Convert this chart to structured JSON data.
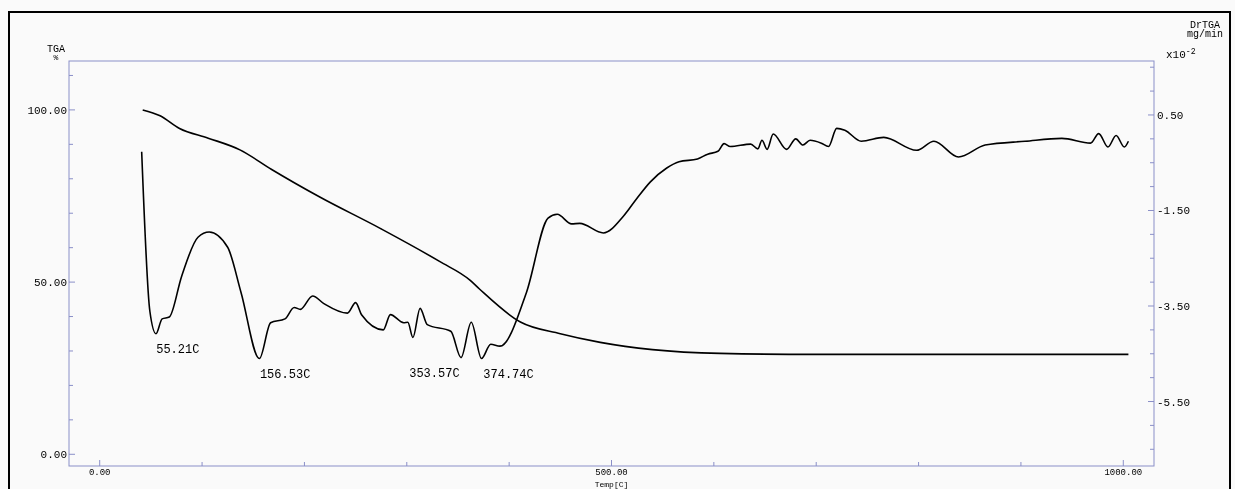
{
  "chart_data": {
    "type": "line",
    "xlabel": "Temp[C]",
    "ylabel": "TGA %",
    "y2label": "DrTGA mg/min",
    "xlim": [
      -30,
      1030
    ],
    "ylim": [
      -3.4,
      114.2
    ],
    "y2lim": [
      -6.85,
      1.63
    ],
    "xticks": [
      {
        "value": 0,
        "label": "0.00"
      },
      {
        "value": 100,
        "label": null
      },
      {
        "value": 200,
        "label": null
      },
      {
        "value": 300,
        "label": null
      },
      {
        "value": 400,
        "label": null
      },
      {
        "value": 500,
        "label": "500.00"
      },
      {
        "value": 600,
        "label": null
      },
      {
        "value": 700,
        "label": null
      },
      {
        "value": 800,
        "label": null
      },
      {
        "value": 900,
        "label": null
      },
      {
        "value": 1000,
        "label": "1000.00"
      }
    ],
    "yticks": [
      {
        "value": 0,
        "label": "0.00"
      },
      {
        "value": 10,
        "label": null
      },
      {
        "value": 20,
        "label": null
      },
      {
        "value": 30,
        "label": null
      },
      {
        "value": 40,
        "label": null
      },
      {
        "value": 50,
        "label": "50.00"
      },
      {
        "value": 60,
        "label": null
      },
      {
        "value": 70,
        "label": null
      },
      {
        "value": 80,
        "label": null
      },
      {
        "value": 90,
        "label": null
      },
      {
        "value": 100,
        "label": "100.00"
      },
      {
        "value": 110,
        "label": null
      }
    ],
    "y2ticks": [
      {
        "value": -6.5,
        "label": null
      },
      {
        "value": -6,
        "label": null
      },
      {
        "value": -5.5,
        "label": "-5.50"
      },
      {
        "value": -5,
        "label": null
      },
      {
        "value": -4.5,
        "label": null
      },
      {
        "value": -4,
        "label": null
      },
      {
        "value": -3.5,
        "label": "-3.50"
      },
      {
        "value": -3,
        "label": null
      },
      {
        "value": -2.5,
        "label": null
      },
      {
        "value": -2,
        "label": null
      },
      {
        "value": -1.5,
        "label": "-1.50"
      },
      {
        "value": -1,
        "label": null
      },
      {
        "value": -0.5,
        "label": null
      },
      {
        "value": 0,
        "label": null
      },
      {
        "value": 0.5,
        "label": "0.50"
      },
      {
        "value": 1,
        "label": null
      },
      {
        "value": 1.5,
        "label": null
      }
    ],
    "grid": false,
    "marker": "none",
    "line_style": "solid",
    "series": [
      {
        "color": "#000000",
        "axis": "y",
        "x": [
          42,
          59,
          78,
          106,
          137,
          168,
          215,
          274,
          332,
          362,
          371,
          411,
          450,
          489,
          540,
          606,
          700,
          800,
          900,
          1005
        ],
        "values": [
          100,
          98.3,
          94.6,
          91.8,
          88.4,
          82.7,
          74.7,
          65.6,
          56,
          50.5,
          48,
          38.4,
          35,
          32.5,
          30.4,
          29.3,
          29,
          29,
          29,
          29
        ]
      },
      {
        "color": "#000000",
        "axis": "y2",
        "x": [
          41,
          49,
          55,
          61,
          68,
          80,
          96,
          107,
          125,
          138,
          156,
          167,
          181,
          190,
          196,
          208,
          219,
          242,
          250,
          256,
          277,
          284,
          297,
          301,
          306,
          313,
          320,
          343,
          353,
          363,
          373,
          382,
          391,
          417,
          438,
          447,
          461,
          469,
          492,
          512,
          524,
          538,
          554,
          566,
          584,
          594,
          604,
          610,
          616,
          636,
          643,
          647,
          652,
          658,
          671,
          680,
          687,
          694,
          705,
          712,
          720,
          728,
          744,
          766,
          798,
          815,
          839,
          865,
          904,
          940,
          968,
          976,
          985,
          993,
          1001,
          1005
        ],
        "values": [
          -0.27,
          -3.61,
          -4.08,
          -3.77,
          -3.73,
          -2.88,
          -2.06,
          -1.95,
          -2.27,
          -3.21,
          -4.6,
          -3.85,
          -3.77,
          -3.53,
          -3.57,
          -3.29,
          -3.45,
          -3.65,
          -3.43,
          -3.69,
          -4.0,
          -3.68,
          -3.85,
          -3.84,
          -4.16,
          -3.55,
          -3.89,
          -4.03,
          -4.58,
          -3.84,
          -4.6,
          -4.3,
          -4.34,
          -3.21,
          -1.66,
          -1.58,
          -1.78,
          -1.77,
          -1.97,
          -1.61,
          -1.27,
          -0.9,
          -0.61,
          -0.48,
          -0.42,
          -0.32,
          -0.26,
          -0.1,
          -0.16,
          -0.11,
          -0.21,
          -0.03,
          -0.22,
          0.1,
          -0.22,
          0.0,
          -0.13,
          -0.03,
          -0.09,
          -0.16,
          0.22,
          0.18,
          -0.05,
          0.03,
          -0.24,
          -0.05,
          -0.38,
          -0.13,
          -0.05,
          0.01,
          -0.09,
          0.11,
          -0.17,
          0.07,
          -0.17,
          -0.05
        ]
      }
    ],
    "annotations": [
      {
        "text": "55.21C",
        "x": 55.21,
        "y": 35.1
      },
      {
        "text": "156.53C",
        "x": 156.53,
        "y": 28.0
      },
      {
        "text": "353.57C",
        "x": 353.57,
        "y": 28.3
      },
      {
        "text": "374.74C",
        "x": 374.74,
        "y": 28.0
      },
      "x10$^{-2}$"
    ]
  }
}
